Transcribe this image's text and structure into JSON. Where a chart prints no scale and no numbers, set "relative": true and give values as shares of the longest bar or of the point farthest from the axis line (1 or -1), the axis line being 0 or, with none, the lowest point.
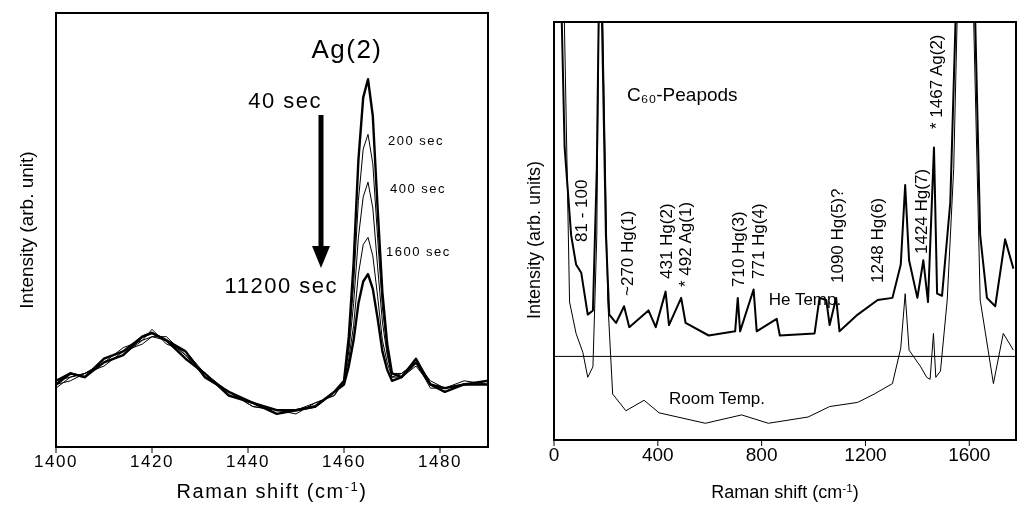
{
  "chart_data": [
    {
      "type": "line",
      "xlabel": "Raman shift (cm$^{-1}$)",
      "ylabel": "Intensity (arb. unit)",
      "relative": true,
      "xlim": [
        1400,
        1490
      ],
      "xticks": [
        1400,
        1420,
        1440,
        1460,
        1480
      ],
      "annotations": [
        "Ag(2)",
        "40 sec",
        "200 sec",
        "400 sec",
        "1600 sec",
        "11200 sec"
      ],
      "x": [
        1400,
        1403,
        1406,
        1410,
        1414,
        1418,
        1420,
        1423,
        1427,
        1431,
        1436,
        1441,
        1446,
        1450,
        1454,
        1458,
        1460,
        1461,
        1462,
        1463,
        1464,
        1465,
        1466,
        1467,
        1468,
        1469,
        1470,
        1472,
        1475,
        1478,
        1481,
        1485,
        1490
      ],
      "series": [
        {
          "color": "#000000",
          "values": [
            0.17,
            0.2,
            0.19,
            0.24,
            0.26,
            0.3,
            0.31,
            0.29,
            0.26,
            0.19,
            0.15,
            0.12,
            0.09,
            0.1,
            0.11,
            0.15,
            0.18,
            0.3,
            0.5,
            0.78,
            0.95,
            1.0,
            0.9,
            0.65,
            0.42,
            0.28,
            0.2,
            0.19,
            0.24,
            0.17,
            0.15,
            0.17,
            0.18
          ]
        },
        {
          "color": "#000000",
          "values": [
            0.18,
            0.19,
            0.2,
            0.23,
            0.27,
            0.29,
            0.3,
            0.3,
            0.25,
            0.2,
            0.15,
            0.11,
            0.1,
            0.1,
            0.12,
            0.14,
            0.18,
            0.28,
            0.44,
            0.67,
            0.81,
            0.85,
            0.77,
            0.57,
            0.38,
            0.26,
            0.2,
            0.2,
            0.23,
            0.18,
            0.16,
            0.17,
            0.17
          ]
        },
        {
          "color": "#000000",
          "values": [
            0.16,
            0.19,
            0.2,
            0.23,
            0.25,
            0.29,
            0.32,
            0.28,
            0.26,
            0.2,
            0.14,
            0.12,
            0.09,
            0.1,
            0.11,
            0.15,
            0.18,
            0.26,
            0.39,
            0.57,
            0.68,
            0.72,
            0.65,
            0.49,
            0.34,
            0.25,
            0.19,
            0.19,
            0.22,
            0.17,
            0.16,
            0.18,
            0.17
          ]
        },
        {
          "color": "#000000",
          "values": [
            0.17,
            0.18,
            0.2,
            0.22,
            0.26,
            0.28,
            0.3,
            0.29,
            0.25,
            0.19,
            0.15,
            0.11,
            0.1,
            0.09,
            0.12,
            0.14,
            0.18,
            0.24,
            0.33,
            0.47,
            0.55,
            0.57,
            0.52,
            0.41,
            0.29,
            0.23,
            0.19,
            0.2,
            0.23,
            0.16,
            0.16,
            0.17,
            0.18
          ]
        },
        {
          "color": "#000000",
          "values": [
            0.18,
            0.2,
            0.19,
            0.23,
            0.25,
            0.3,
            0.31,
            0.29,
            0.24,
            0.2,
            0.14,
            0.12,
            0.1,
            0.1,
            0.11,
            0.15,
            0.17,
            0.22,
            0.29,
            0.39,
            0.45,
            0.47,
            0.43,
            0.35,
            0.26,
            0.21,
            0.18,
            0.19,
            0.23,
            0.17,
            0.16,
            0.17,
            0.17
          ]
        }
      ]
    },
    {
      "type": "line",
      "xlabel": "Raman shift (cm$^{-1}$)",
      "ylabel": "Intensity (arb. units)",
      "relative": true,
      "xlim": [
        0,
        1780
      ],
      "xticks": [
        0,
        400,
        800,
        1200,
        1600
      ],
      "annotations": [
        "C₆₀-Peapods",
        "81 - 100",
        "~270 Hg(1)",
        "431 Hg(2)",
        "* 492 Ag(1)",
        "710 Hg(3)",
        "771 Hg(4)",
        "1090 Hg(5)?",
        "1248 Hg(6)",
        "1424 Hg(7)",
        "* 1467 Ag(2)"
      ],
      "ref_lines": [
        {
          "axis": "y",
          "value": 0.2
        }
      ],
      "series": [
        {
          "name": "He Temp.",
          "color": "#000000",
          "x": [
            30,
            41,
            66,
            85,
            105,
            130,
            150,
            165,
            172,
            178,
            185,
            200,
            213,
            239,
            270,
            290,
            364,
            392,
            430,
            443,
            490,
            507,
            596,
            698,
            708,
            717,
            769,
            781,
            858,
            870,
            1004,
            1023,
            1049,
            1062,
            1087,
            1100,
            1170,
            1247,
            1304,
            1336,
            1353,
            1368,
            1400,
            1423,
            1441,
            1464,
            1476,
            1495,
            1527,
            1547,
            1585,
            1623,
            1642,
            1668,
            1700,
            1738,
            1770
          ],
          "values": [
            1.0,
            0.7,
            0.49,
            0.42,
            0.4,
            0.3,
            0.31,
            0.65,
            1.0,
            null,
            1.0,
            0.49,
            0.3,
            0.28,
            0.32,
            0.27,
            0.31,
            0.27,
            0.355,
            0.275,
            0.34,
            0.28,
            0.25,
            0.26,
            0.34,
            0.26,
            0.36,
            0.26,
            0.29,
            0.25,
            0.255,
            0.34,
            0.335,
            0.275,
            0.34,
            0.26,
            0.3,
            0.335,
            0.34,
            0.42,
            0.61,
            0.43,
            0.34,
            0.43,
            0.33,
            0.7,
            0.35,
            0.345,
            0.57,
            1.0,
            null,
            1.0,
            0.49,
            0.34,
            0.32,
            0.48,
            0.41
          ]
        },
        {
          "name": "Room Temp.",
          "color": "#000000",
          "x": [
            40,
            60,
            85,
            111,
            130,
            150,
            165,
            172,
            180,
            188,
            207,
            226,
            277,
            347,
            405,
            583,
            723,
            826,
            979,
            1062,
            1170,
            1234,
            1304,
            1336,
            1353,
            1368,
            1413,
            1436,
            1449,
            1462,
            1471,
            1489,
            1515,
            1540,
            1553,
            1585,
            1617,
            1642,
            1693,
            1731,
            1770
          ],
          "values": [
            1.0,
            0.33,
            0.255,
            0.21,
            0.15,
            0.175,
            0.49,
            1.0,
            null,
            1.0,
            0.335,
            0.11,
            0.07,
            0.095,
            0.065,
            0.04,
            0.06,
            0.04,
            0.055,
            0.08,
            0.09,
            0.11,
            0.135,
            0.22,
            0.35,
            0.215,
            0.175,
            0.15,
            0.145,
            0.255,
            0.15,
            0.165,
            0.335,
            0.65,
            1.0,
            null,
            1.0,
            0.335,
            0.135,
            0.255,
            0.215
          ]
        }
      ]
    }
  ]
}
